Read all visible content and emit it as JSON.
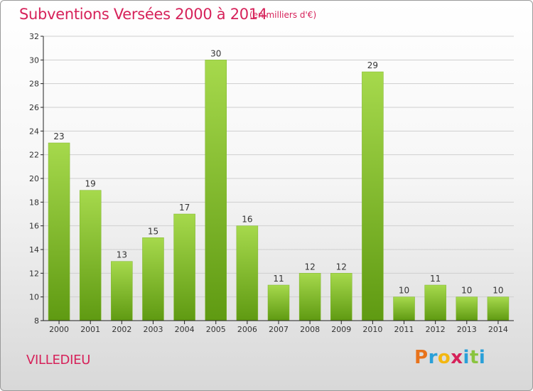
{
  "title": "Subventions Versées 2000 à 2014",
  "subtitle": "(en milliers d'€)",
  "city": "VILLEDIEU",
  "logo_text": "Proxiti",
  "colors": {
    "title": "#d6225a",
    "bar_top": "#a6d94c",
    "bar_bottom": "#5f9a12",
    "axis": "#222222",
    "grid": "#cfcfcf",
    "logo": [
      "#e8731c",
      "#2aa0d8",
      "#f3b711",
      "#d6225a",
      "#2aa0d8",
      "#8ac43f",
      "#2aa0d8"
    ]
  },
  "chart_data": {
    "type": "bar",
    "title": "Subventions Versées 2000 à 2014",
    "subtitle": "(en milliers d'€)",
    "categories": [
      "2000",
      "2001",
      "2002",
      "2003",
      "2004",
      "2005",
      "2006",
      "2007",
      "2008",
      "2009",
      "2010",
      "2011",
      "2012",
      "2013",
      "2014"
    ],
    "values": [
      23,
      19,
      13,
      15,
      17,
      30,
      16,
      11,
      12,
      12,
      29,
      10,
      11,
      10,
      10
    ],
    "data_labels": [
      "23",
      "19",
      "13",
      "15",
      "17",
      "30",
      "16",
      "11",
      "12",
      "12",
      "29",
      "10",
      "11",
      "10",
      "10"
    ],
    "ylim": [
      8,
      32
    ],
    "yticks": [
      8,
      10,
      12,
      14,
      16,
      18,
      20,
      22,
      24,
      26,
      28,
      30,
      32
    ],
    "ytick_labels": [
      "8",
      "10",
      "12",
      "14",
      "16",
      "18",
      "20",
      "22",
      "24",
      "26",
      "28",
      "30",
      "32"
    ],
    "grid": true,
    "legend": "none"
  }
}
